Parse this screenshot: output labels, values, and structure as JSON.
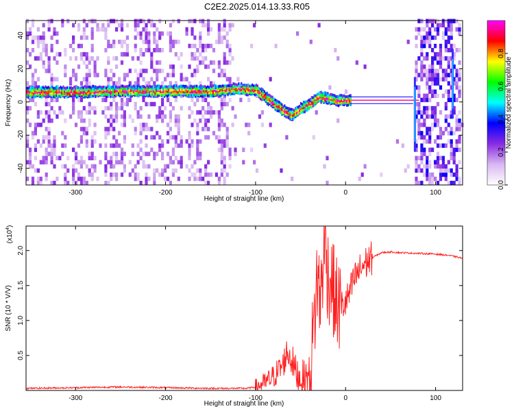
{
  "title": "C2E2.2025.014.13.33.R05",
  "chart_data": [
    {
      "type": "heatmap",
      "xlabel": "Height of straight line (km)",
      "ylabel": "Frequency (Hz)",
      "xlim": [
        -355,
        130
      ],
      "ylim": [
        -50,
        49
      ],
      "xticks": [
        -300,
        -200,
        -100,
        0,
        100
      ],
      "yticks": [
        -40,
        -20,
        0,
        20,
        40
      ],
      "colorbar": {
        "label": "Normalized spectral amplitude",
        "range": [
          0,
          1
        ],
        "ticks": [
          0.0,
          0.2,
          0.4,
          0.6,
          0.8
        ],
        "tick_labels": [
          "0.0",
          "0.2",
          "0.4",
          "0.6",
          "0.8"
        ],
        "colors": [
          "#ffffff",
          "#d8b8f0",
          "#8a2be2",
          "#0000ff",
          "#00ffff",
          "#00ff00",
          "#ffff00",
          "#ff0000",
          "#ff00ff"
        ]
      },
      "ridge": {
        "x": [
          -355,
          -300,
          -250,
          -200,
          -150,
          -120,
          -100,
          -90,
          -80,
          -70,
          -60,
          -50,
          -40,
          -30,
          -20,
          -10,
          0,
          10,
          75
        ],
        "y": [
          6,
          6,
          6.5,
          6.5,
          6.5,
          8,
          7,
          3,
          -1,
          -5,
          -8,
          -4,
          -1,
          3,
          2,
          1,
          1,
          1,
          1
        ]
      }
    },
    {
      "type": "line",
      "xlabel": "Height of straight line (km)",
      "ylabel": "SNR (10 * V/V)",
      "yscale_label": "(x10",
      "yscale_exp": "4",
      "yscale_close": ")",
      "xlim": [
        -355,
        130
      ],
      "ylim": [
        0,
        2.35
      ],
      "xticks": [
        -300,
        -200,
        -100,
        0,
        100
      ],
      "yticks": [
        0.5,
        1.0,
        1.5,
        2.0
      ],
      "ytick_labels": [
        "0.5",
        "1.0",
        "1.5",
        "2.0"
      ],
      "series": [
        {
          "color": "#ff2020",
          "x": [
            -355,
            -300,
            -250,
            -200,
            -150,
            -110,
            -100,
            -90,
            -80,
            -75,
            -70,
            -65,
            -60,
            -55,
            -50,
            -45,
            -40,
            -35,
            -32,
            -28,
            -25,
            -22,
            -20,
            -18,
            -15,
            -12,
            -10,
            -7,
            -5,
            0,
            5,
            10,
            20,
            30,
            40,
            50,
            60,
            80,
            100,
            115,
            130
          ],
          "y": [
            0.03,
            0.04,
            0.05,
            0.04,
            0.03,
            0.03,
            0.05,
            0.1,
            0.2,
            0.28,
            0.35,
            0.55,
            0.45,
            0.25,
            0.18,
            0.15,
            0.22,
            0.9,
            1.6,
            1.3,
            1.85,
            2.1,
            1.7,
            1.6,
            1.55,
            1.3,
            1.25,
            1.2,
            1.2,
            1.25,
            1.4,
            1.6,
            1.8,
            1.9,
            1.97,
            1.98,
            1.97,
            1.96,
            1.95,
            1.93,
            1.89
          ]
        }
      ]
    }
  ]
}
